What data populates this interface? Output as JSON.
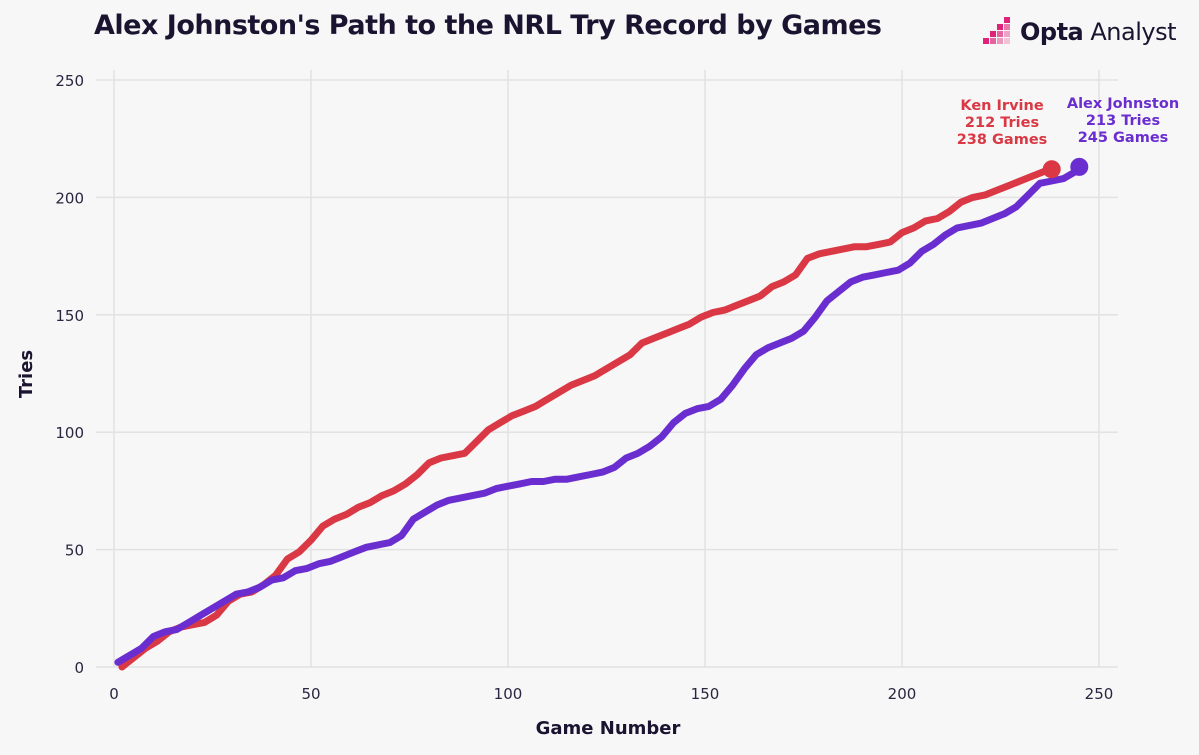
{
  "page": {
    "title": "Alex Johnston's Path to the NRL Try Record by Games",
    "brand": {
      "bold": "Opta",
      "light": "Analyst",
      "icon": "opta-logo-icon",
      "color": "#e0237a"
    }
  },
  "chart_data": {
    "type": "line",
    "title": "Alex Johnston's Path to the NRL Try Record by Games",
    "xlabel": "Game Number",
    "ylabel": "Tries",
    "xlim": [
      0,
      255
    ],
    "ylim": [
      0,
      250
    ],
    "xticks": [
      0,
      50,
      100,
      150,
      200,
      250
    ],
    "yticks": [
      0,
      50,
      100,
      150,
      200,
      250
    ],
    "grid": true,
    "series": [
      {
        "name": "Ken Irvine",
        "color": "#d93844",
        "points": [
          [
            2,
            0
          ],
          [
            5,
            4
          ],
          [
            8,
            8
          ],
          [
            11,
            11
          ],
          [
            14,
            15
          ],
          [
            17,
            17
          ],
          [
            20,
            18
          ],
          [
            23,
            19
          ],
          [
            26,
            22
          ],
          [
            29,
            28
          ],
          [
            32,
            31
          ],
          [
            35,
            32
          ],
          [
            38,
            35
          ],
          [
            41,
            39
          ],
          [
            44,
            46
          ],
          [
            47,
            49
          ],
          [
            50,
            54
          ],
          [
            53,
            60
          ],
          [
            56,
            63
          ],
          [
            59,
            65
          ],
          [
            62,
            68
          ],
          [
            65,
            70
          ],
          [
            68,
            73
          ],
          [
            71,
            75
          ],
          [
            74,
            78
          ],
          [
            77,
            82
          ],
          [
            80,
            87
          ],
          [
            83,
            89
          ],
          [
            86,
            90
          ],
          [
            89,
            91
          ],
          [
            92,
            96
          ],
          [
            95,
            101
          ],
          [
            98,
            104
          ],
          [
            101,
            107
          ],
          [
            104,
            109
          ],
          [
            107,
            111
          ],
          [
            110,
            114
          ],
          [
            113,
            117
          ],
          [
            116,
            120
          ],
          [
            119,
            122
          ],
          [
            122,
            124
          ],
          [
            125,
            127
          ],
          [
            128,
            130
          ],
          [
            131,
            133
          ],
          [
            134,
            138
          ],
          [
            137,
            140
          ],
          [
            140,
            142
          ],
          [
            143,
            144
          ],
          [
            146,
            146
          ],
          [
            149,
            149
          ],
          [
            152,
            151
          ],
          [
            155,
            152
          ],
          [
            158,
            154
          ],
          [
            161,
            156
          ],
          [
            164,
            158
          ],
          [
            167,
            162
          ],
          [
            170,
            164
          ],
          [
            173,
            167
          ],
          [
            176,
            174
          ],
          [
            179,
            176
          ],
          [
            182,
            177
          ],
          [
            185,
            178
          ],
          [
            188,
            179
          ],
          [
            191,
            179
          ],
          [
            194,
            180
          ],
          [
            197,
            181
          ],
          [
            200,
            185
          ],
          [
            203,
            187
          ],
          [
            206,
            190
          ],
          [
            209,
            191
          ],
          [
            212,
            194
          ],
          [
            215,
            198
          ],
          [
            218,
            200
          ],
          [
            221,
            201
          ],
          [
            224,
            203
          ],
          [
            227,
            205
          ],
          [
            230,
            207
          ],
          [
            233,
            209
          ],
          [
            236,
            211
          ],
          [
            238,
            212
          ]
        ],
        "end_label": [
          "Ken Irvine",
          "212 Tries",
          "238 Games"
        ]
      },
      {
        "name": "Alex Johnston",
        "color": "#6a2ed0",
        "points": [
          [
            1,
            2
          ],
          [
            4,
            5
          ],
          [
            7,
            8
          ],
          [
            10,
            13
          ],
          [
            13,
            15
          ],
          [
            16,
            16
          ],
          [
            19,
            19
          ],
          [
            22,
            22
          ],
          [
            25,
            25
          ],
          [
            28,
            28
          ],
          [
            31,
            31
          ],
          [
            34,
            32
          ],
          [
            37,
            34
          ],
          [
            40,
            37
          ],
          [
            43,
            38
          ],
          [
            46,
            41
          ],
          [
            49,
            42
          ],
          [
            52,
            44
          ],
          [
            55,
            45
          ],
          [
            58,
            47
          ],
          [
            61,
            49
          ],
          [
            64,
            51
          ],
          [
            67,
            52
          ],
          [
            70,
            53
          ],
          [
            73,
            56
          ],
          [
            76,
            63
          ],
          [
            79,
            66
          ],
          [
            82,
            69
          ],
          [
            85,
            71
          ],
          [
            88,
            72
          ],
          [
            91,
            73
          ],
          [
            94,
            74
          ],
          [
            97,
            76
          ],
          [
            100,
            77
          ],
          [
            103,
            78
          ],
          [
            106,
            79
          ],
          [
            109,
            79
          ],
          [
            112,
            80
          ],
          [
            115,
            80
          ],
          [
            118,
            81
          ],
          [
            121,
            82
          ],
          [
            124,
            83
          ],
          [
            127,
            85
          ],
          [
            130,
            89
          ],
          [
            133,
            91
          ],
          [
            136,
            94
          ],
          [
            139,
            98
          ],
          [
            142,
            104
          ],
          [
            145,
            108
          ],
          [
            148,
            110
          ],
          [
            151,
            111
          ],
          [
            154,
            114
          ],
          [
            157,
            120
          ],
          [
            160,
            127
          ],
          [
            163,
            133
          ],
          [
            166,
            136
          ],
          [
            169,
            138
          ],
          [
            172,
            140
          ],
          [
            175,
            143
          ],
          [
            178,
            149
          ],
          [
            181,
            156
          ],
          [
            184,
            160
          ],
          [
            187,
            164
          ],
          [
            190,
            166
          ],
          [
            193,
            167
          ],
          [
            196,
            168
          ],
          [
            199,
            169
          ],
          [
            202,
            172
          ],
          [
            205,
            177
          ],
          [
            208,
            180
          ],
          [
            211,
            184
          ],
          [
            214,
            187
          ],
          [
            217,
            188
          ],
          [
            220,
            189
          ],
          [
            223,
            191
          ],
          [
            226,
            193
          ],
          [
            229,
            196
          ],
          [
            232,
            201
          ],
          [
            235,
            206
          ],
          [
            238,
            207
          ],
          [
            241,
            208
          ],
          [
            244,
            211
          ],
          [
            245,
            213
          ]
        ],
        "end_label": [
          "Alex Johnston",
          "213 Tries",
          "245 Games"
        ]
      }
    ]
  }
}
